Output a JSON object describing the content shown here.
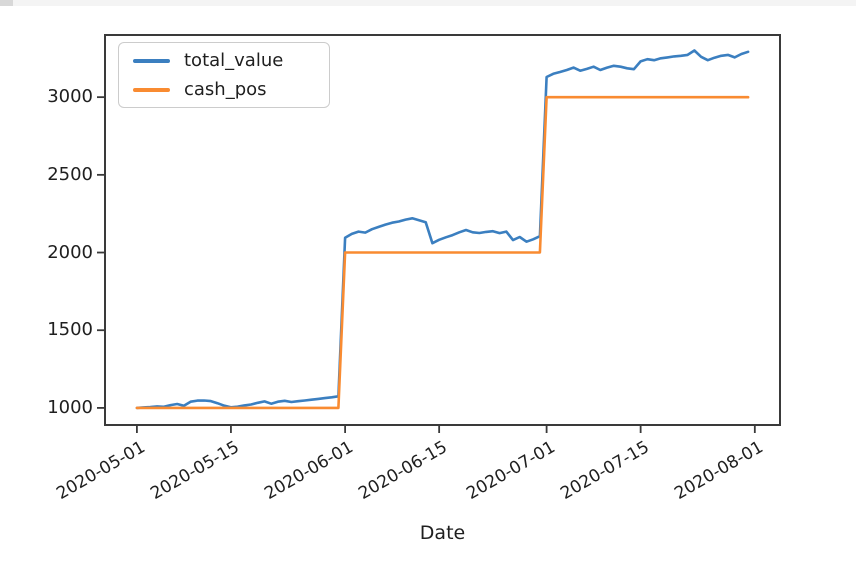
{
  "page": {
    "top_strip_color": "#f4f4f4",
    "top_strip_accent_color": "#d8d8d8"
  },
  "axis_style": {
    "spine_color": "#3a3a3a",
    "tick_color": "#3a3a3a",
    "background": "#ffffff"
  },
  "chart_data": {
    "type": "line",
    "title": "",
    "xlabel": "Date",
    "ylabel": "",
    "grid": false,
    "legend_position": "upper left",
    "x_start_date": "2020-05-01",
    "x_end_date": "2020-07-31",
    "xlim_margin_days": 4.75,
    "ylim": [
      890,
      3400
    ],
    "y_ticks": [
      "1000",
      "1500",
      "2000",
      "2500",
      "3000"
    ],
    "y_tick_values": [
      1000,
      1500,
      2000,
      2500,
      3000
    ],
    "x_ticks": [
      "2020-05-01",
      "2020-05-15",
      "2020-06-01",
      "2020-06-15",
      "2020-07-01",
      "2020-07-15",
      "2020-08-01"
    ],
    "dates": [
      "2020-05-01",
      "2020-05-02",
      "2020-05-03",
      "2020-05-04",
      "2020-05-05",
      "2020-05-06",
      "2020-05-07",
      "2020-05-08",
      "2020-05-09",
      "2020-05-10",
      "2020-05-11",
      "2020-05-12",
      "2020-05-13",
      "2020-05-14",
      "2020-05-15",
      "2020-05-16",
      "2020-05-17",
      "2020-05-18",
      "2020-05-19",
      "2020-05-20",
      "2020-05-21",
      "2020-05-22",
      "2020-05-23",
      "2020-05-24",
      "2020-05-25",
      "2020-05-26",
      "2020-05-27",
      "2020-05-28",
      "2020-05-29",
      "2020-05-30",
      "2020-05-31",
      "2020-06-01",
      "2020-06-02",
      "2020-06-03",
      "2020-06-04",
      "2020-06-05",
      "2020-06-06",
      "2020-06-07",
      "2020-06-08",
      "2020-06-09",
      "2020-06-10",
      "2020-06-11",
      "2020-06-12",
      "2020-06-13",
      "2020-06-14",
      "2020-06-15",
      "2020-06-16",
      "2020-06-17",
      "2020-06-18",
      "2020-06-19",
      "2020-06-20",
      "2020-06-21",
      "2020-06-22",
      "2020-06-23",
      "2020-06-24",
      "2020-06-25",
      "2020-06-26",
      "2020-06-27",
      "2020-06-28",
      "2020-06-29",
      "2020-06-30",
      "2020-07-01",
      "2020-07-02",
      "2020-07-03",
      "2020-07-04",
      "2020-07-05",
      "2020-07-06",
      "2020-07-07",
      "2020-07-08",
      "2020-07-09",
      "2020-07-10",
      "2020-07-11",
      "2020-07-12",
      "2020-07-13",
      "2020-07-14",
      "2020-07-15",
      "2020-07-16",
      "2020-07-17",
      "2020-07-18",
      "2020-07-19",
      "2020-07-20",
      "2020-07-21",
      "2020-07-22",
      "2020-07-23",
      "2020-07-24",
      "2020-07-25",
      "2020-07-26",
      "2020-07-27",
      "2020-07-28",
      "2020-07-29",
      "2020-07-30",
      "2020-07-31"
    ],
    "series": [
      {
        "name": "total_value",
        "color": "#3b7fc0",
        "values": [
          1000,
          1003,
          1005,
          1010,
          1007,
          1018,
          1025,
          1014,
          1040,
          1047,
          1048,
          1044,
          1030,
          1014,
          1004,
          1008,
          1016,
          1022,
          1033,
          1042,
          1027,
          1040,
          1046,
          1038,
          1043,
          1048,
          1053,
          1058,
          1063,
          1068,
          1075,
          2095,
          2120,
          2135,
          2128,
          2150,
          2165,
          2180,
          2192,
          2200,
          2212,
          2220,
          2208,
          2195,
          2060,
          2082,
          2098,
          2112,
          2130,
          2145,
          2130,
          2126,
          2133,
          2137,
          2125,
          2135,
          2080,
          2100,
          2070,
          2085,
          2105,
          3130,
          3150,
          3162,
          3175,
          3190,
          3170,
          3182,
          3196,
          3175,
          3190,
          3202,
          3196,
          3186,
          3180,
          3230,
          3244,
          3238,
          3250,
          3256,
          3262,
          3266,
          3272,
          3300,
          3260,
          3238,
          3254,
          3266,
          3272,
          3256,
          3278,
          3292
        ]
      },
      {
        "name": "cash_pos",
        "color": "#f98b31",
        "values": [
          1000,
          1000,
          1000,
          1000,
          1000,
          1000,
          1000,
          1000,
          1000,
          1000,
          1000,
          1000,
          1000,
          1000,
          1000,
          1000,
          1000,
          1000,
          1000,
          1000,
          1000,
          1000,
          1000,
          1000,
          1000,
          1000,
          1000,
          1000,
          1000,
          1000,
          1000,
          2000,
          2000,
          2000,
          2000,
          2000,
          2000,
          2000,
          2000,
          2000,
          2000,
          2000,
          2000,
          2000,
          2000,
          2000,
          2000,
          2000,
          2000,
          2000,
          2000,
          2000,
          2000,
          2000,
          2000,
          2000,
          2000,
          2000,
          2000,
          2000,
          2000,
          3000,
          3000,
          3000,
          3000,
          3000,
          3000,
          3000,
          3000,
          3000,
          3000,
          3000,
          3000,
          3000,
          3000,
          3000,
          3000,
          3000,
          3000,
          3000,
          3000,
          3000,
          3000,
          3000,
          3000,
          3000,
          3000,
          3000,
          3000,
          3000,
          3000,
          3000
        ]
      }
    ]
  }
}
